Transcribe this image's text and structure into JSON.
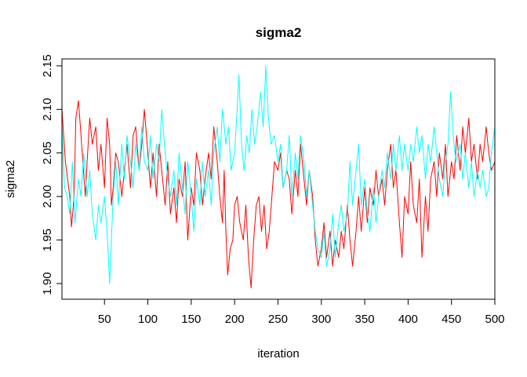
{
  "chart_data": {
    "type": "line",
    "title": "sigma2",
    "xlabel": "iteration",
    "ylabel": "sigma2",
    "xlim": [
      1,
      500
    ],
    "ylim": [
      1.882,
      2.158
    ],
    "xticks": [
      50,
      100,
      150,
      200,
      250,
      300,
      350,
      400,
      450,
      500
    ],
    "xtick_labels": [
      "50",
      "100",
      "150",
      "200",
      "250",
      "300",
      "350",
      "400",
      "450",
      "500"
    ],
    "yticks": [
      1.9,
      1.95,
      2.0,
      2.05,
      2.1,
      2.15
    ],
    "ytick_labels": [
      "1.90",
      "1.95",
      "2.00",
      "2.05",
      "2.10",
      "2.15"
    ],
    "grid": false,
    "legend": "none",
    "colors": {
      "series1": "#ff0000",
      "series2": "#00ffff"
    },
    "series": [
      {
        "color": "#ff0000",
        "points": [
          [
            1,
            2.1
          ],
          [
            5,
            2.04
          ],
          [
            10,
            2.0
          ],
          [
            12,
            1.965
          ],
          [
            15,
            2.0
          ],
          [
            17,
            2.09
          ],
          [
            20,
            2.11
          ],
          [
            23,
            2.07
          ],
          [
            25,
            2.04
          ],
          [
            28,
            2.0
          ],
          [
            30,
            2.04
          ],
          [
            33,
            2.09
          ],
          [
            36,
            2.06
          ],
          [
            40,
            2.08
          ],
          [
            43,
            2.03
          ],
          [
            46,
            2.06
          ],
          [
            50,
            2.01
          ],
          [
            53,
            2.09
          ],
          [
            56,
            2.06
          ],
          [
            58,
            1.99
          ],
          [
            60,
            2.01
          ],
          [
            63,
            2.05
          ],
          [
            66,
            2.04
          ],
          [
            70,
            2.0
          ],
          [
            73,
            2.03
          ],
          [
            76,
            2.06
          ],
          [
            80,
            2.01
          ],
          [
            83,
            2.07
          ],
          [
            86,
            2.08
          ],
          [
            90,
            2.03
          ],
          [
            93,
            2.06
          ],
          [
            96,
            2.1
          ],
          [
            100,
            2.05
          ],
          [
            103,
            2.01
          ],
          [
            106,
            2.05
          ],
          [
            110,
            2.0
          ],
          [
            113,
            2.06
          ],
          [
            116,
            2.03
          ],
          [
            120,
            1.99
          ],
          [
            123,
            2.04
          ],
          [
            126,
            1.98
          ],
          [
            130,
            2.01
          ],
          [
            133,
            1.97
          ],
          [
            136,
            2.02
          ],
          [
            140,
            2.0
          ],
          [
            143,
            2.04
          ],
          [
            146,
            1.95
          ],
          [
            150,
            2.01
          ],
          [
            153,
            1.99
          ],
          [
            156,
            2.05
          ],
          [
            160,
            2.03
          ],
          [
            163,
            1.99
          ],
          [
            166,
            2.02
          ],
          [
            170,
            2.05
          ],
          [
            173,
            2.02
          ],
          [
            176,
            2.08
          ],
          [
            180,
            2.04
          ],
          [
            183,
            2.0
          ],
          [
            186,
            1.97
          ],
          [
            188,
            2.03
          ],
          [
            190,
            1.96
          ],
          [
            192,
            1.91
          ],
          [
            195,
            1.94
          ],
          [
            198,
            1.95
          ],
          [
            200,
            1.99
          ],
          [
            203,
            2.0
          ],
          [
            206,
            1.97
          ],
          [
            210,
            1.95
          ],
          [
            213,
            1.99
          ],
          [
            216,
            1.93
          ],
          [
            219,
            1.895
          ],
          [
            222,
            1.95
          ],
          [
            225,
            1.99
          ],
          [
            228,
            2.0
          ],
          [
            231,
            1.96
          ],
          [
            234,
            1.99
          ],
          [
            237,
            1.94
          ],
          [
            240,
            1.96
          ],
          [
            243,
            2.0
          ],
          [
            246,
            2.04
          ],
          [
            250,
            2.03
          ],
          [
            253,
            2.05
          ],
          [
            256,
            2.01
          ],
          [
            260,
            2.03
          ],
          [
            263,
            2.02
          ],
          [
            266,
            1.98
          ],
          [
            270,
            2.03
          ],
          [
            273,
            2.0
          ],
          [
            276,
            2.06
          ],
          [
            280,
            2.02
          ],
          [
            283,
            1.99
          ],
          [
            286,
            2.03
          ],
          [
            290,
            2.0
          ],
          [
            293,
            1.95
          ],
          [
            296,
            1.92
          ],
          [
            300,
            1.94
          ],
          [
            303,
            1.97
          ],
          [
            306,
            1.93
          ],
          [
            310,
            1.96
          ],
          [
            313,
            1.92
          ],
          [
            316,
            1.95
          ],
          [
            320,
            1.93
          ],
          [
            323,
            1.96
          ],
          [
            326,
            1.94
          ],
          [
            330,
            1.99
          ],
          [
            333,
            1.95
          ],
          [
            336,
            1.92
          ],
          [
            340,
            1.96
          ],
          [
            343,
            2.0
          ],
          [
            346,
            1.96
          ],
          [
            350,
            2.01
          ],
          [
            353,
            1.97
          ],
          [
            356,
            2.01
          ],
          [
            360,
            1.99
          ],
          [
            363,
            2.03
          ],
          [
            366,
            2.0
          ],
          [
            370,
            2.02
          ],
          [
            373,
            1.99
          ],
          [
            376,
            2.03
          ],
          [
            380,
            2.06
          ],
          [
            383,
            2.01
          ],
          [
            386,
            2.03
          ],
          [
            390,
            1.97
          ],
          [
            393,
            1.93
          ],
          [
            396,
            2.0
          ],
          [
            400,
            1.98
          ],
          [
            403,
            2.04
          ],
          [
            406,
            1.99
          ],
          [
            410,
            1.97
          ],
          [
            413,
            2.02
          ],
          [
            416,
            1.93
          ],
          [
            420,
            2.0
          ],
          [
            423,
            1.96
          ],
          [
            426,
            2.02
          ],
          [
            430,
            2.04
          ],
          [
            433,
            2.0
          ],
          [
            436,
            2.05
          ],
          [
            440,
            2.02
          ],
          [
            443,
            2.06
          ],
          [
            446,
            2.0
          ],
          [
            450,
            2.04
          ],
          [
            453,
            2.02
          ],
          [
            456,
            2.07
          ],
          [
            460,
            2.03
          ],
          [
            463,
            2.08
          ],
          [
            466,
            2.05
          ],
          [
            470,
            2.09
          ],
          [
            473,
            2.04
          ],
          [
            476,
            2.06
          ],
          [
            480,
            2.02
          ],
          [
            483,
            2.06
          ],
          [
            486,
            2.04
          ],
          [
            490,
            2.08
          ],
          [
            493,
            2.05
          ],
          [
            496,
            2.03
          ],
          [
            500,
            2.04
          ]
        ]
      },
      {
        "color": "#00ffff",
        "points": [
          [
            1,
            2.08
          ],
          [
            4,
            2.01
          ],
          [
            7,
            2.0
          ],
          [
            10,
            1.98
          ],
          [
            13,
            2.04
          ],
          [
            16,
            1.97
          ],
          [
            20,
            2.02
          ],
          [
            23,
            2.0
          ],
          [
            26,
            2.05
          ],
          [
            30,
            2.0
          ],
          [
            33,
            2.03
          ],
          [
            36,
            1.98
          ],
          [
            40,
            1.95
          ],
          [
            43,
            1.99
          ],
          [
            46,
            1.97
          ],
          [
            50,
            2.0
          ],
          [
            53,
            1.96
          ],
          [
            56,
            1.9
          ],
          [
            58,
            1.95
          ],
          [
            60,
            2.0
          ],
          [
            63,
            2.04
          ],
          [
            66,
            1.99
          ],
          [
            70,
            2.06
          ],
          [
            73,
            2.02
          ],
          [
            76,
            2.07
          ],
          [
            80,
            2.04
          ],
          [
            83,
            2.01
          ],
          [
            86,
            2.06
          ],
          [
            90,
            2.03
          ],
          [
            93,
            2.08
          ],
          [
            96,
            2.04
          ],
          [
            100,
            2.03
          ],
          [
            103,
            2.07
          ],
          [
            106,
            2.02
          ],
          [
            110,
            2.06
          ],
          [
            113,
            2.04
          ],
          [
            116,
            2.1
          ],
          [
            120,
            2.05
          ],
          [
            123,
            2.02
          ],
          [
            126,
            2.0
          ],
          [
            130,
            2.03
          ],
          [
            133,
            1.99
          ],
          [
            136,
            2.05
          ],
          [
            140,
            2.01
          ],
          [
            143,
            1.98
          ],
          [
            146,
            2.04
          ],
          [
            150,
            2.0
          ],
          [
            153,
            1.96
          ],
          [
            156,
            2.02
          ],
          [
            160,
            1.99
          ],
          [
            163,
            2.04
          ],
          [
            166,
            2.0
          ],
          [
            170,
            2.03
          ],
          [
            173,
            1.99
          ],
          [
            176,
            2.05
          ],
          [
            180,
            2.08
          ],
          [
            183,
            2.04
          ],
          [
            186,
            2.1
          ],
          [
            190,
            2.06
          ],
          [
            193,
            2.08
          ],
          [
            196,
            2.03
          ],
          [
            200,
            2.05
          ],
          [
            203,
            2.1
          ],
          [
            205,
            2.14
          ],
          [
            208,
            2.06
          ],
          [
            211,
            2.03
          ],
          [
            214,
            2.07
          ],
          [
            217,
            2.05
          ],
          [
            220,
            2.1
          ],
          [
            223,
            2.06
          ],
          [
            226,
            2.08
          ],
          [
            230,
            2.12
          ],
          [
            233,
            2.08
          ],
          [
            236,
            2.15
          ],
          [
            239,
            2.09
          ],
          [
            242,
            2.06
          ],
          [
            246,
            2.07
          ],
          [
            250,
            2.04
          ],
          [
            253,
            2.06
          ],
          [
            256,
            2.01
          ],
          [
            260,
            2.03
          ],
          [
            263,
            2.07
          ],
          [
            266,
            2.0
          ],
          [
            270,
            2.05
          ],
          [
            273,
            2.02
          ],
          [
            276,
            2.07
          ],
          [
            280,
            2.04
          ],
          [
            283,
            2.0
          ],
          [
            286,
            2.03
          ],
          [
            290,
            1.99
          ],
          [
            293,
            1.96
          ],
          [
            296,
            1.94
          ],
          [
            300,
            1.93
          ],
          [
            303,
            1.96
          ],
          [
            306,
            1.92
          ],
          [
            310,
            1.94
          ],
          [
            313,
            1.98
          ],
          [
            316,
            1.93
          ],
          [
            320,
            1.97
          ],
          [
            323,
            1.99
          ],
          [
            326,
            1.96
          ],
          [
            330,
            1.98
          ],
          [
            333,
            2.04
          ],
          [
            336,
            1.99
          ],
          [
            340,
            2.03
          ],
          [
            343,
            2.06
          ],
          [
            346,
            1.99
          ],
          [
            350,
            2.02
          ],
          [
            353,
            1.98
          ],
          [
            356,
            1.96
          ],
          [
            360,
            2.01
          ],
          [
            363,
            1.97
          ],
          [
            366,
            2.0
          ],
          [
            370,
            2.03
          ],
          [
            373,
            2.01
          ],
          [
            376,
            2.05
          ],
          [
            380,
            2.02
          ],
          [
            383,
            2.06
          ],
          [
            386,
            2.03
          ],
          [
            390,
            2.07
          ],
          [
            393,
            2.03
          ],
          [
            396,
            2.06
          ],
          [
            400,
            2.03
          ],
          [
            403,
            2.06
          ],
          [
            406,
            2.04
          ],
          [
            410,
            2.08
          ],
          [
            413,
            2.05
          ],
          [
            416,
            2.07
          ],
          [
            420,
            2.02
          ],
          [
            423,
            2.06
          ],
          [
            426,
            2.04
          ],
          [
            430,
            2.08
          ],
          [
            433,
            2.05
          ],
          [
            436,
            2.02
          ],
          [
            440,
            2.0
          ],
          [
            443,
            2.04
          ],
          [
            446,
            2.06
          ],
          [
            449,
            2.12
          ],
          [
            452,
            2.07
          ],
          [
            455,
            2.04
          ],
          [
            460,
            2.06
          ],
          [
            463,
            2.02
          ],
          [
            466,
            2.05
          ],
          [
            470,
            2.01
          ],
          [
            473,
            2.04
          ],
          [
            476,
            2.0
          ],
          [
            480,
            2.03
          ],
          [
            483,
            2.01
          ],
          [
            486,
            2.03
          ],
          [
            490,
            2.0
          ],
          [
            493,
            2.01
          ],
          [
            496,
            2.05
          ],
          [
            500,
            2.08
          ]
        ]
      }
    ]
  }
}
